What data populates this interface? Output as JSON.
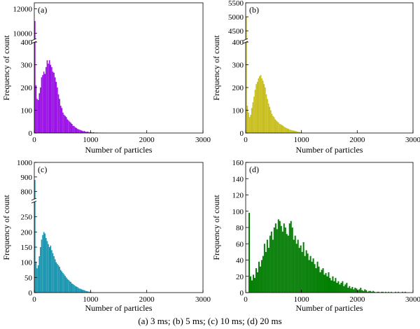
{
  "caption": "(a) 3 ms;  (b) 5 ms;  (c)  10 ms;  (d) 20 ms",
  "chart_data": [
    {
      "panel": "(a)",
      "type": "bar",
      "color": "#9B10E6",
      "xlabel": "Number of particles",
      "ylabel": "Frequency of count",
      "xlim": [
        0,
        3000
      ],
      "xticks": [
        0,
        1000,
        2000,
        3000
      ],
      "broken_axis": {
        "lower": [
          0,
          400
        ],
        "upper": [
          9500,
          12500
        ]
      },
      "yticks_lower": [
        0,
        100,
        200,
        300,
        400
      ],
      "yticks_upper": [
        10000,
        12000
      ],
      "bin_width": 20,
      "x": [
        0,
        20,
        40,
        60,
        80,
        100,
        120,
        140,
        160,
        180,
        200,
        220,
        240,
        260,
        280,
        300,
        320,
        340,
        360,
        380,
        400,
        420,
        440,
        460,
        480,
        500,
        520,
        540,
        560,
        580,
        600,
        620,
        640,
        660,
        680,
        700,
        720,
        740,
        760,
        780,
        800,
        820,
        840,
        860,
        880,
        900,
        920,
        940,
        960,
        980,
        1000,
        1020,
        1040,
        1060,
        1080,
        1100,
        1120,
        1140,
        1160,
        1180,
        1200,
        1220,
        1240,
        1260,
        1280
      ],
      "values": [
        11000,
        210,
        150,
        145,
        175,
        200,
        245,
        255,
        270,
        260,
        290,
        320,
        305,
        320,
        300,
        290,
        270,
        265,
        245,
        225,
        200,
        170,
        150,
        120,
        110,
        90,
        80,
        75,
        70,
        60,
        55,
        50,
        45,
        40,
        32,
        30,
        25,
        22,
        18,
        16,
        14,
        12,
        10,
        8,
        9,
        6,
        5,
        6,
        4,
        3,
        3,
        2,
        3,
        2,
        1,
        2,
        1,
        1,
        1,
        0,
        1,
        1,
        0,
        1,
        0
      ]
    },
    {
      "panel": "(b)",
      "type": "bar",
      "color": "#C8BE1E",
      "xlabel": "Number of particles",
      "ylabel": "Frequency of count",
      "xlim": [
        0,
        3000
      ],
      "xticks": [
        0,
        1000,
        2000,
        3000
      ],
      "broken_axis": {
        "lower": [
          0,
          400
        ],
        "upper": [
          4200,
          5500
        ]
      },
      "yticks_lower": [
        0,
        100,
        200,
        300,
        400
      ],
      "yticks_upper": [
        4500,
        5000,
        5500
      ],
      "bin_width": 20,
      "x": [
        0,
        20,
        40,
        60,
        80,
        100,
        120,
        140,
        160,
        180,
        200,
        220,
        240,
        260,
        280,
        300,
        320,
        340,
        360,
        380,
        400,
        420,
        440,
        460,
        480,
        500,
        520,
        540,
        560,
        580,
        600,
        620,
        640,
        660,
        680,
        700,
        720,
        740,
        760,
        780,
        800,
        820,
        840,
        860,
        880,
        900,
        920,
        940,
        960,
        980,
        1000,
        1020
      ],
      "values": [
        5000,
        120,
        90,
        70,
        80,
        110,
        135,
        160,
        190,
        215,
        225,
        240,
        250,
        255,
        240,
        230,
        215,
        200,
        170,
        150,
        130,
        115,
        100,
        85,
        75,
        70,
        60,
        55,
        50,
        46,
        40,
        38,
        35,
        32,
        28,
        25,
        22,
        20,
        18,
        15,
        14,
        12,
        11,
        10,
        9,
        8,
        6,
        5,
        4,
        3,
        2,
        1
      ]
    },
    {
      "panel": "(c)",
      "type": "bar",
      "color": "#1A96B0",
      "xlabel": "Number of particles",
      "ylabel": "Frequency of count",
      "xlim": [
        0,
        3000
      ],
      "xticks": [
        0,
        1000,
        2000,
        3000
      ],
      "broken_axis": {
        "lower": [
          0,
          300
        ],
        "upper": [
          750,
          1000
        ]
      },
      "yticks_lower": [
        0,
        50,
        100,
        150,
        200,
        250
      ],
      "yticks_upper": [
        800,
        900,
        1000
      ],
      "bin_width": 20,
      "x": [
        0,
        20,
        40,
        60,
        80,
        100,
        120,
        140,
        160,
        180,
        200,
        220,
        240,
        260,
        280,
        300,
        320,
        340,
        360,
        380,
        400,
        420,
        440,
        460,
        480,
        500,
        520,
        540,
        560,
        580,
        600,
        620,
        640,
        660,
        680,
        700,
        720,
        740,
        760,
        780,
        800,
        820,
        840,
        860,
        880,
        900,
        920,
        940,
        960,
        980,
        1000,
        1020,
        1040
      ],
      "values": [
        880,
        100,
        80,
        90,
        120,
        150,
        175,
        190,
        200,
        195,
        180,
        170,
        160,
        150,
        155,
        140,
        130,
        120,
        110,
        100,
        95,
        90,
        85,
        75,
        70,
        65,
        60,
        55,
        50,
        45,
        42,
        38,
        35,
        30,
        28,
        25,
        22,
        20,
        18,
        15,
        13,
        12,
        10,
        9,
        8,
        6,
        5,
        4,
        3,
        3,
        2,
        1,
        1
      ]
    },
    {
      "panel": "(d)",
      "type": "bar",
      "color": "#008000",
      "xlabel": "Number of particles",
      "ylabel": "Frequency of count",
      "xlim": [
        0,
        3000
      ],
      "ylim": [
        0,
        160
      ],
      "xticks": [
        0,
        1000,
        2000,
        3000
      ],
      "yticks": [
        0,
        20,
        40,
        60,
        80,
        100,
        120,
        140,
        160
      ],
      "bin_width": 25,
      "x": [
        50,
        75,
        100,
        125,
        150,
        175,
        200,
        225,
        250,
        275,
        300,
        325,
        350,
        375,
        400,
        425,
        450,
        475,
        500,
        525,
        550,
        575,
        600,
        625,
        650,
        675,
        700,
        725,
        750,
        775,
        800,
        825,
        850,
        875,
        900,
        925,
        950,
        975,
        1000,
        1025,
        1050,
        1075,
        1100,
        1125,
        1150,
        1175,
        1200,
        1225,
        1250,
        1275,
        1300,
        1325,
        1350,
        1375,
        1400,
        1425,
        1450,
        1475,
        1500,
        1525,
        1550,
        1575,
        1600,
        1625,
        1650,
        1675,
        1700,
        1725,
        1750,
        1775,
        1800,
        1825,
        1850,
        1875,
        1900,
        1925,
        1950,
        1975,
        2000,
        2025,
        2050,
        2075,
        2100,
        2125,
        2150,
        2175,
        2200,
        2225,
        2250,
        2275,
        2300,
        2325,
        2350,
        2375,
        2400,
        2425,
        2450,
        2475,
        2500,
        2525,
        2550,
        2575,
        2600,
        2625,
        2650,
        2675,
        2700,
        2725,
        2750,
        2775,
        2800,
        2825,
        2850
      ],
      "values": [
        98,
        20,
        15,
        22,
        18,
        30,
        25,
        38,
        32,
        40,
        45,
        60,
        50,
        65,
        55,
        70,
        75,
        65,
        80,
        85,
        78,
        90,
        88,
        82,
        75,
        85,
        80,
        72,
        70,
        85,
        88,
        80,
        65,
        70,
        60,
        65,
        55,
        58,
        50,
        62,
        45,
        52,
        48,
        40,
        45,
        38,
        42,
        35,
        30,
        38,
        32,
        25,
        28,
        30,
        22,
        24,
        20,
        25,
        18,
        15,
        20,
        14,
        18,
        12,
        14,
        10,
        12,
        14,
        8,
        10,
        12,
        6,
        8,
        5,
        7,
        4,
        6,
        5,
        3,
        4,
        6,
        3,
        2,
        4,
        3,
        1,
        2,
        2,
        1,
        2,
        1,
        0,
        1,
        1,
        0,
        1,
        1,
        0,
        1,
        0,
        1,
        0,
        1,
        0,
        0,
        1,
        0,
        1,
        0,
        0,
        1,
        0,
        1
      ]
    }
  ]
}
